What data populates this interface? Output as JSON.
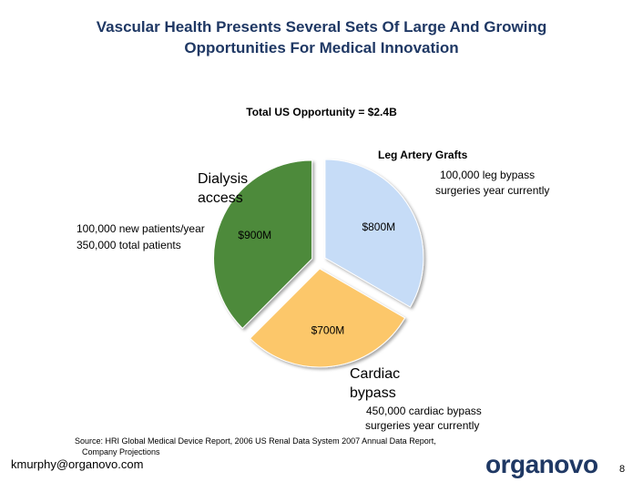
{
  "title_line1": "Vascular Health Presents Several Sets Of Large And Growing",
  "title_line2": "Opportunities For Medical Innovation",
  "total": "Total US Opportunity = $2.4B",
  "chart_data": {
    "type": "pie",
    "title": "Total US Opportunity = $2.4B",
    "unit": "$M",
    "slices": [
      {
        "name": "Leg Artery Grafts",
        "value": 800,
        "label": "$800M",
        "color": "#c6dcf7"
      },
      {
        "name": "Cardiac bypass",
        "value": 700,
        "label": "$700M",
        "color": "#fcc76a"
      },
      {
        "name": "Dialysis access",
        "value": 900,
        "label": "$900M",
        "color": "#4e8a3a"
      }
    ]
  },
  "annotations": {
    "leg_title": "Leg Artery Grafts",
    "leg_line1": "100,000 leg bypass",
    "leg_line2": "surgeries year currently",
    "dialysis_line1": "Dialysis",
    "dialysis_line2": "access",
    "dialysis_detail1": "100,000 new patients/year",
    "dialysis_detail2": "350,000 total patients",
    "cardiac_line1": "Cardiac",
    "cardiac_line2": "bypass",
    "cardiac_detail1": "450,000 cardiac bypass",
    "cardiac_detail2": "surgeries year currently"
  },
  "source_line1": "Source: HRI Global Medical Device Report, 2006 US Renal Data System 2007 Annual Data Report,",
  "source_line2": "Company Projections",
  "email": "kmurphy@organovo.com",
  "logo_text": "organovo",
  "page_number": "8"
}
